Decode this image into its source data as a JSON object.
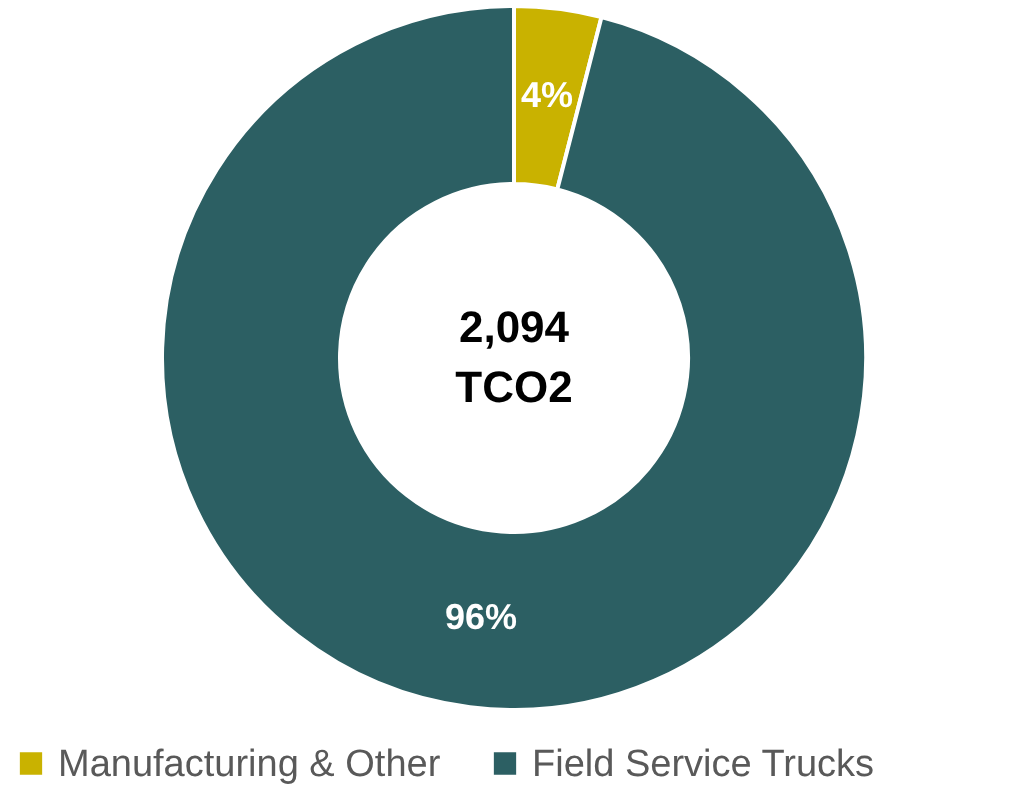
{
  "chart_data": {
    "type": "donut",
    "categories": [
      "Manufacturing & Other",
      "Field Service Trucks"
    ],
    "values": [
      4,
      96
    ],
    "colors": [
      "#c9b200",
      "#2c5f63"
    ],
    "value_labels": [
      "4%",
      "96%"
    ],
    "annotations": [
      "2,094",
      "TCO2"
    ],
    "legend": "bottom"
  }
}
